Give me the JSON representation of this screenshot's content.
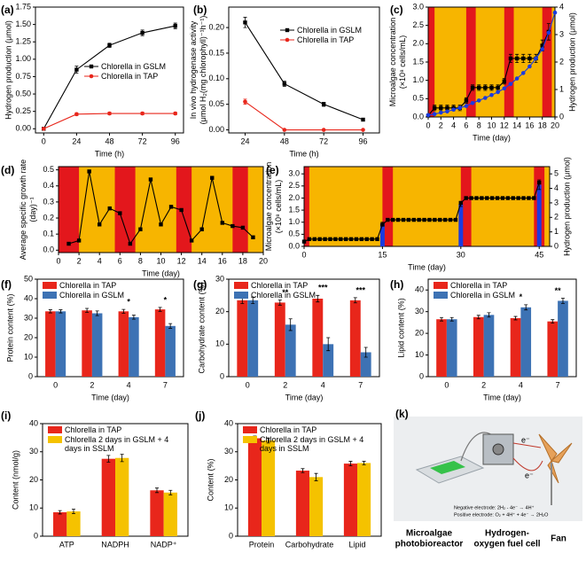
{
  "chart_data": [
    {
      "type": "line",
      "label": "(a)",
      "xlabel": "Time (h)",
      "ylabel": "Hydrogen production (μmol)",
      "x": [
        0,
        24,
        48,
        72,
        96
      ],
      "xlim": [
        -6,
        102
      ],
      "xticks": [
        0,
        24,
        48,
        72,
        96
      ],
      "ylim": [
        -0.06,
        1.75
      ],
      "yticks": [
        {
          "value": 0,
          "label": "0.00"
        },
        {
          "value": 0.25,
          "label": "0.25"
        },
        {
          "value": 0.5,
          "label": "0.50"
        },
        {
          "value": 0.75,
          "label": "0.75"
        },
        {
          "value": 1,
          "label": "1.00"
        },
        {
          "value": 1.25,
          "label": "1.25"
        },
        {
          "value": 1.5,
          "label": "1.50"
        },
        {
          "value": 1.75,
          "label": "1.75"
        }
      ],
      "legend": "center right",
      "series": [
        {
          "name": "Chlorella in GSLM",
          "color": "#000000",
          "marker": "square",
          "values": [
            0,
            0.85,
            1.2,
            1.38,
            1.48
          ],
          "errors": [
            0.01,
            0.05,
            0.03,
            0.04,
            0.04
          ]
        },
        {
          "name": "Chlorella in TAP",
          "color": "#e8261b",
          "marker": "circle",
          "values": [
            0,
            0.21,
            0.22,
            0.22,
            0.22
          ],
          "errors": [
            0.01,
            0.02,
            0.02,
            0.02,
            0.02
          ]
        }
      ]
    },
    {
      "type": "line",
      "label": "(b)",
      "xlabel": "Time (h)",
      "ylabel": [
        "In vivo hydrogenase activity",
        "(μmol H₂(mg chlorophyll)⁻¹h⁻¹)"
      ],
      "x": [
        24,
        48,
        72,
        96
      ],
      "xlim": [
        14,
        106
      ],
      "xticks": [
        24,
        48,
        72,
        96
      ],
      "ylim": [
        -0.006,
        0.24
      ],
      "yticks": [
        {
          "value": 0,
          "label": "0.00"
        },
        {
          "value": 0.05,
          "label": "0.05"
        },
        {
          "value": 0.1,
          "label": "0.10"
        },
        {
          "value": 0.15,
          "label": "0.15"
        },
        {
          "value": 0.2,
          "label": "0.20"
        }
      ],
      "legend": "upper right",
      "series": [
        {
          "name": "Chlorella in GSLM",
          "color": "#000000",
          "marker": "square",
          "values": [
            0.21,
            0.09,
            0.05,
            0.02
          ],
          "errors": [
            0.01,
            0.005,
            0.004,
            0.002
          ]
        },
        {
          "name": "Chlorella in TAP",
          "color": "#e8261b",
          "marker": "circle",
          "values": [
            0.055,
            0,
            0,
            0
          ],
          "errors": [
            0.005,
            0,
            0,
            0
          ]
        }
      ]
    },
    {
      "type": "line",
      "label": "(c)",
      "xlabel": "Time (day)",
      "ylabel": [
        "Microalgae concentration",
        "(×10⁸ cells/mL)"
      ],
      "ylabel_color": "#1a3be0",
      "y2label": "Hydrogen production (μmol)",
      "xlim": [
        0,
        20
      ],
      "xticks": [
        0,
        2,
        4,
        6,
        8,
        10,
        12,
        14,
        16,
        18,
        20
      ],
      "ylim": [
        0,
        3
      ],
      "yticks": [
        {
          "value": 0,
          "label": "0.0"
        },
        {
          "value": 0.5,
          "label": "0.5"
        },
        {
          "value": 1,
          "label": "1.0"
        },
        {
          "value": 1.5,
          "label": "1.5"
        },
        {
          "value": 2,
          "label": "2.0"
        },
        {
          "value": 2.5,
          "label": "2.5"
        },
        {
          "value": 3,
          "label": "3.0"
        }
      ],
      "y2lim": [
        0,
        4
      ],
      "y2ticks": [
        0,
        1,
        2,
        3,
        4
      ],
      "background": "#f7b500",
      "band_color": "#e3171c",
      "bands": [
        [
          0,
          1
        ],
        [
          6,
          7.5
        ],
        [
          12,
          13.5
        ],
        [
          18,
          19.5
        ]
      ],
      "series": [
        {
          "color": "#000000",
          "marker": "square",
          "axis": "y2",
          "x": [
            0,
            1,
            2,
            3,
            4,
            5,
            6,
            7,
            8,
            9,
            10,
            11,
            12,
            13,
            14,
            15,
            16,
            17,
            18,
            19
          ],
          "values": [
            0.05,
            0.33,
            0.33,
            0.33,
            0.33,
            0.33,
            0.6,
            1.07,
            1.07,
            1.07,
            1.07,
            1.07,
            1.3,
            2.13,
            2.13,
            2.13,
            2.13,
            2.13,
            2.6,
            3.1
          ],
          "errors": [
            0.05,
            0.1,
            0.1,
            0.1,
            0.1,
            0.1,
            0.1,
            0.1,
            0.1,
            0.1,
            0.1,
            0.1,
            0.1,
            0.15,
            0.15,
            0.15,
            0.15,
            0.15,
            0.2,
            0.3
          ]
        },
        {
          "color": "#1a3be0",
          "marker": "circle",
          "x": [
            0,
            1,
            2,
            3,
            4,
            5,
            6,
            7,
            8,
            9,
            10,
            11,
            12,
            13,
            14,
            15,
            16,
            17,
            18,
            19,
            20
          ],
          "values": [
            0.05,
            0.08,
            0.12,
            0.15,
            0.2,
            0.25,
            0.3,
            0.38,
            0.45,
            0.52,
            0.6,
            0.68,
            0.78,
            0.9,
            1.05,
            1.2,
            1.38,
            1.6,
            1.85,
            2.3,
            2.85
          ]
        }
      ]
    },
    {
      "type": "line",
      "label": "(d)",
      "xlabel": "Time (day)",
      "ylabel": [
        "Average specific growth rate",
        "(day)⁻¹"
      ],
      "xlim": [
        0,
        20
      ],
      "xticks": [
        0,
        2,
        4,
        6,
        8,
        10,
        12,
        14,
        16,
        18,
        20
      ],
      "ylim": [
        -0.015,
        0.52
      ],
      "yticks": [
        {
          "value": 0,
          "label": "0.0"
        },
        {
          "value": 0.1,
          "label": "0.1"
        },
        {
          "value": 0.2,
          "label": "0.2"
        },
        {
          "value": 0.3,
          "label": "0.3"
        },
        {
          "value": 0.4,
          "label": "0.4"
        },
        {
          "value": 0.5,
          "label": "0.5"
        }
      ],
      "background": "#f7b500",
      "band_color": "#e3171c",
      "bands": [
        [
          0,
          2
        ],
        [
          5.5,
          7.5
        ],
        [
          11.5,
          13
        ],
        [
          17,
          18.5
        ]
      ],
      "series": [
        {
          "color": "#000000",
          "marker": "square",
          "x": [
            1,
            2,
            3,
            4,
            5,
            6,
            7,
            8,
            9,
            10,
            11,
            12,
            13,
            14,
            15,
            16,
            17,
            18,
            19
          ],
          "values": [
            0.04,
            0.06,
            0.49,
            0.16,
            0.26,
            0.23,
            0.04,
            0.13,
            0.44,
            0.16,
            0.27,
            0.25,
            0.06,
            0.13,
            0.45,
            0.17,
            0.15,
            0.14,
            0.08
          ]
        }
      ]
    },
    {
      "type": "line",
      "label": "(e)",
      "xlabel": "Time (day)",
      "ylabel": [
        "Microalgae concentration",
        "(×10⁸ cells/mL)"
      ],
      "ylabel_color": "#1a3be0",
      "y2label": "Hydrogen production (μmol)",
      "xlim": [
        0,
        47
      ],
      "xticks": [
        0,
        15,
        30,
        45
      ],
      "ylim": [
        0,
        3.3
      ],
      "yticks": [
        {
          "value": 0,
          "label": "0.0"
        },
        {
          "value": 0.5,
          "label": "0.5"
        },
        {
          "value": 1,
          "label": "1.0"
        },
        {
          "value": 1.5,
          "label": "1.5"
        },
        {
          "value": 2,
          "label": "2.0"
        },
        {
          "value": 2.5,
          "label": "2.5"
        },
        {
          "value": 3,
          "label": "3.0"
        }
      ],
      "y2lim": [
        0,
        5.5
      ],
      "y2ticks": [
        0,
        1,
        2,
        3,
        4,
        5
      ],
      "background": "#f7b500",
      "band_color": "#e3171c",
      "bands": [
        [
          0,
          1
        ],
        [
          15,
          17
        ],
        [
          30,
          32
        ],
        [
          44,
          46
        ]
      ],
      "series": [
        {
          "style": "bar",
          "color": "#1a3be0",
          "x": [
            15,
            30,
            45
          ],
          "values": [
            0.95,
            1.75,
            2.55
          ],
          "errors": [
            0.05,
            0.1,
            0.2
          ]
        },
        {
          "color": "#000000",
          "marker": "square",
          "axis": "y2",
          "x": [
            0,
            1,
            2,
            3,
            4,
            5,
            6,
            7,
            8,
            9,
            10,
            11,
            12,
            13,
            14,
            15,
            16,
            17,
            18,
            19,
            20,
            21,
            22,
            23,
            24,
            25,
            26,
            27,
            28,
            29,
            30,
            31,
            32,
            33,
            34,
            35,
            36,
            37,
            38,
            39,
            40,
            41,
            42,
            43,
            44,
            45
          ],
          "values": [
            0.33,
            0.5,
            0.5,
            0.5,
            0.5,
            0.5,
            0.5,
            0.5,
            0.5,
            0.5,
            0.5,
            0.5,
            0.5,
            0.5,
            0.5,
            1.5,
            1.83,
            1.83,
            1.83,
            1.83,
            1.83,
            1.83,
            1.83,
            1.83,
            1.83,
            1.83,
            1.83,
            1.83,
            1.83,
            1.83,
            3.0,
            3.33,
            3.33,
            3.33,
            3.33,
            3.33,
            3.33,
            3.33,
            3.33,
            3.33,
            3.33,
            3.33,
            3.33,
            3.33,
            3.33,
            4.4
          ]
        }
      ]
    },
    {
      "type": "bar",
      "label": "(f)",
      "xlabel": "Time (day)",
      "ylabel": "Protein content (%)",
      "categories": [
        "0",
        "2",
        "4",
        "7"
      ],
      "ylim": [
        0,
        50
      ],
      "yticks": [
        0,
        10,
        20,
        30,
        40,
        50
      ],
      "legend": "upper left",
      "series": [
        {
          "name": "Chlorella in TAP",
          "color": "#e8261b",
          "values": [
            33.5,
            34,
            33.5,
            34.5
          ],
          "errors": [
            0.8,
            1,
            1,
            1
          ]
        },
        {
          "name": "Chlorella in GSLM",
          "color": "#3d72b4",
          "values": [
            33.5,
            32.5,
            30.5,
            26
          ],
          "errors": [
            0.8,
            1.2,
            1,
            1.2
          ]
        }
      ],
      "annotations": [
        {
          "category": "4",
          "text": "*"
        },
        {
          "category": "7",
          "text": "*"
        }
      ]
    },
    {
      "type": "bar",
      "label": "(g)",
      "xlabel": "Time (day)",
      "ylabel": "Carbohydrate content (%)",
      "categories": [
        "0",
        "2",
        "4",
        "7"
      ],
      "ylim": [
        0,
        30
      ],
      "yticks": [
        0,
        10,
        20,
        30
      ],
      "legend": "upper left",
      "series": [
        {
          "name": "Chlorella in TAP",
          "color": "#e8261b",
          "values": [
            23.5,
            22.8,
            24,
            23.5
          ],
          "errors": [
            1,
            0.8,
            1,
            0.8
          ]
        },
        {
          "name": "Chlorella in GSLM",
          "color": "#3d72b4",
          "values": [
            23.5,
            16,
            10,
            7.5
          ],
          "errors": [
            1,
            1.8,
            2,
            1.5
          ]
        }
      ],
      "annotations": [
        {
          "category": "2",
          "text": "**"
        },
        {
          "category": "4",
          "text": "***"
        },
        {
          "category": "7",
          "text": "***"
        }
      ]
    },
    {
      "type": "bar",
      "label": "(h)",
      "xlabel": "Time (day)",
      "ylabel": "Lipid content (%)",
      "categories": [
        "0",
        "2",
        "4",
        "7"
      ],
      "ylim": [
        0,
        45
      ],
      "yticks": [
        0,
        10,
        20,
        30,
        40
      ],
      "legend": "upper left",
      "series": [
        {
          "name": "Chlorella in TAP",
          "color": "#e8261b",
          "values": [
            26.5,
            27.5,
            27,
            25.5
          ],
          "errors": [
            0.8,
            0.8,
            0.8,
            0.8
          ]
        },
        {
          "name": "Chlorella in GSLM",
          "color": "#3d72b4",
          "values": [
            26.5,
            28.5,
            32,
            35
          ],
          "errors": [
            0.8,
            1,
            1.2,
            1.2
          ]
        }
      ],
      "annotations": [
        {
          "category": "4",
          "text": "*"
        },
        {
          "category": "7",
          "text": "**"
        }
      ]
    },
    {
      "type": "bar",
      "label": "(i)",
      "ylabel": "Content (nmol/g)",
      "categories": [
        "ATP",
        "NADPH",
        "NADP⁺"
      ],
      "ylim": [
        0,
        40
      ],
      "yticks": [
        0,
        10,
        20,
        30,
        40
      ],
      "legend": "upper left",
      "series": [
        {
          "name": "Chlorella in TAP",
          "color": "#e8261b",
          "values": [
            8.5,
            27.5,
            16.3
          ],
          "errors": [
            0.6,
            1.2,
            0.8
          ]
        },
        {
          "name": "Chlorella 2 days in GSLM + 4 days in SSLM",
          "color": "#f5c200",
          "values": [
            8.8,
            27.8,
            15.5
          ],
          "errors": [
            0.8,
            1.3,
            0.8
          ]
        }
      ]
    },
    {
      "type": "bar",
      "label": "(j)",
      "ylabel": "Content (%)",
      "categories": [
        "Protein",
        "Carbohydrate",
        "Lipid"
      ],
      "ylim": [
        0,
        40
      ],
      "yticks": [
        0,
        10,
        20,
        30,
        40
      ],
      "legend": "upper left",
      "series": [
        {
          "name": "Chlorella in TAP",
          "color": "#e8261b",
          "values": [
            34.8,
            23.3,
            25.8
          ],
          "errors": [
            0.8,
            0.7,
            0.8
          ]
        },
        {
          "name": "Chlorella 2 days in GSLM + 4 days in SSLM",
          "color": "#f5c200",
          "values": [
            34,
            21,
            26
          ],
          "errors": [
            0.9,
            1.3,
            0.6
          ]
        }
      ]
    }
  ],
  "photo": {
    "label": "(k)",
    "captions": [
      [
        "Microalgae",
        "photobioreactor"
      ],
      [
        "Hydrogen-",
        "oxygen fuel cell"
      ],
      [
        "Fan"
      ]
    ],
    "equations": [
      "Negative electrode: 2H₂ - 4e⁻ → 4H⁺",
      "Positive electrode: O₂ + 4H⁺ + 4e⁻ → 2H₂O"
    ],
    "electrons": [
      "e⁻",
      "e⁻"
    ]
  }
}
